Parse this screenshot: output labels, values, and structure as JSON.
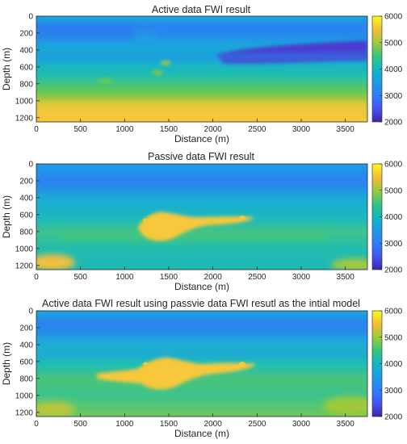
{
  "chart_data": [
    {
      "type": "heatmap",
      "title": "Active data FWI result",
      "xlabel": "Distance (m)",
      "ylabel": "Depth (m)",
      "xlim": [
        0,
        3750
      ],
      "ylim": [
        1250,
        0
      ],
      "x_ticks": [
        0,
        500,
        1000,
        1500,
        2000,
        2500,
        3000,
        3500
      ],
      "y_ticks": [
        0,
        200,
        400,
        600,
        800,
        1000,
        1200
      ],
      "colorbar": {
        "min": 2000,
        "max": 6000,
        "ticks": [
          2000,
          3000,
          4000,
          5000,
          6000
        ],
        "colormap": "parula"
      },
      "features": [
        {
          "label": "low-velocity layer",
          "x_range": [
            2000,
            3750
          ],
          "depth_range": [
            350,
            550
          ],
          "value": 2200
        },
        {
          "label": "high-velocity base",
          "x_range": [
            0,
            3750
          ],
          "depth_range": [
            1000,
            1250
          ],
          "value": 5600
        }
      ]
    },
    {
      "type": "heatmap",
      "title": "Passive data FWI result",
      "xlabel": "Distance (m)",
      "ylabel": "Depth (m)",
      "xlim": [
        0,
        3750
      ],
      "ylim": [
        1250,
        0
      ],
      "x_ticks": [
        0,
        500,
        1000,
        1500,
        2000,
        2500,
        3000,
        3500
      ],
      "y_ticks": [
        0,
        200,
        400,
        600,
        800,
        1000,
        1200
      ],
      "colorbar": {
        "min": 2000,
        "max": 6000,
        "ticks": [
          2000,
          3000,
          4000,
          5000,
          6000
        ],
        "colormap": "parula"
      },
      "features": [
        {
          "label": "high-velocity body",
          "x_range": [
            1200,
            2500
          ],
          "depth_range": [
            580,
            880
          ],
          "value": 5800
        }
      ]
    },
    {
      "type": "heatmap",
      "title": "Active data FWI result using passvie data FWI resutl as the intial model",
      "xlabel": "Distance (m)",
      "ylabel": "Depth (m)",
      "xlim": [
        0,
        3750
      ],
      "ylim": [
        1250,
        0
      ],
      "x_ticks": [
        0,
        500,
        1000,
        1500,
        2000,
        2500,
        3000,
        3500
      ],
      "y_ticks": [
        0,
        200,
        400,
        600,
        800,
        1000,
        1200
      ],
      "colorbar": {
        "min": 2000,
        "max": 6000,
        "ticks": [
          2000,
          3000,
          4000,
          5000,
          6000
        ],
        "colormap": "parula"
      },
      "features": [
        {
          "label": "high-velocity body",
          "x_range": [
            700,
            2500
          ],
          "depth_range": [
            580,
            880
          ],
          "value": 5800
        }
      ]
    }
  ]
}
